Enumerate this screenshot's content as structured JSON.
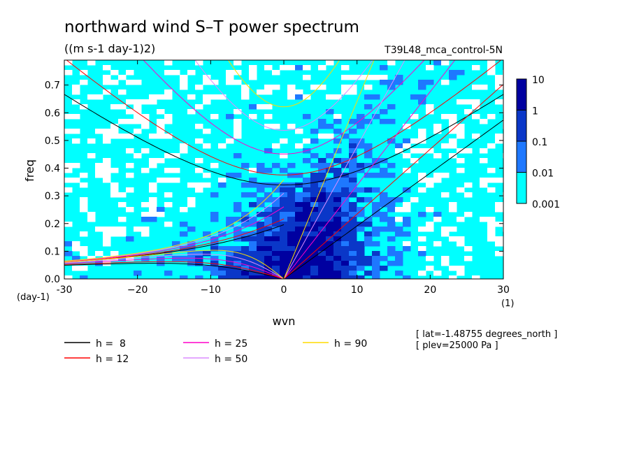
{
  "chart_data": {
    "type": "heatmap",
    "title": "northward wind S–T power spectrum",
    "units": "((m s-1 day-1)2)",
    "experiment": "T39L48_mca_control-5N",
    "xlabel": "wvn",
    "ylabel": "freq",
    "x_unit": "(1)",
    "y_unit": "(day-1)",
    "xlim": [
      -30,
      30
    ],
    "ylim": [
      0,
      0.79
    ],
    "x_ticks": [
      -30,
      -20,
      -10,
      0,
      10,
      20,
      30
    ],
    "x_tick_labels": [
      "-30",
      "−20",
      "−10",
      "0",
      "10",
      "20",
      "30"
    ],
    "y_ticks": [
      0,
      0.1,
      0.2,
      0.3,
      0.4,
      0.5,
      0.6,
      0.7
    ],
    "y_tick_labels": [
      "0.0",
      "0.1",
      "0.2",
      "0.3",
      "0.4",
      "0.5",
      "0.6",
      "0.7"
    ],
    "colorbar": {
      "levels": [
        "0.001",
        "0.01",
        "0.1",
        "1",
        "10"
      ],
      "colors": [
        "#00ffff",
        "#1e78ff",
        "#0a37c8",
        "#0000a0",
        "#4b0aa0"
      ]
    },
    "dispersion_legend": [
      {
        "label": "h =  8",
        "h": 8,
        "color": "#000000"
      },
      {
        "label": "h = 12",
        "h": 12,
        "color": "#ff0000"
      },
      {
        "label": "h = 25",
        "h": 25,
        "color": "#ff00c8"
      },
      {
        "label": "h = 50",
        "h": 50,
        "color": "#dc8cff"
      },
      {
        "label": "h = 90",
        "h": 90,
        "color": "#ffdc00"
      }
    ],
    "footnotes": [
      "[ lat=-1.48755 degrees_north ]",
      "[ plev=25000 Pa ]"
    ]
  }
}
